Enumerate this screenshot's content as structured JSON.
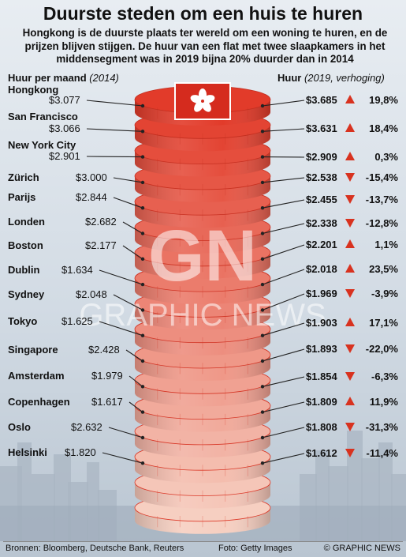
{
  "title": "Duurste steden om een huis te huren",
  "subtitle": "Hongkong is de duurste plaats ter wereld om een woning te huren, en de prijzen blijven stijgen. De huur van een flat met twee slaapkamers in het middensegment was in 2019 bijna 20% duurder dan in 2014",
  "left_header": {
    "label": "Huur per maand",
    "note": "(2014)"
  },
  "right_header": {
    "label": "Huur",
    "note": "(2019, verhoging)"
  },
  "watermark": {
    "logo": "GN",
    "text": "GRAPHIC NEWS"
  },
  "footer": {
    "sources": "Bronnen: Bloomberg, Deutsche Bank, Reuters",
    "photo": "Foto: Getty Images",
    "copyright": "© GRAPHIC NEWS"
  },
  "colors": {
    "coin_top": "#e23b2a",
    "coin_bottom": "#f6cfc1",
    "up_arrow": "#d8321f",
    "down_arrow": "#d8321f",
    "sky": "#c8d3de",
    "flag_red": "#d52b1e"
  },
  "icons": {
    "flag": "hong-kong-flag-icon",
    "up": "triangle-up-icon",
    "down": "triangle-down-icon"
  },
  "chart_data": {
    "type": "table",
    "series_2014_name": "Huur per maand (2014)",
    "series_2019_name": "Huur (2019, verhoging)",
    "rows": [
      {
        "city": "Hongkong",
        "rent_2014": "$3.077",
        "rent_2019": "$3.685",
        "change": "19,8%",
        "direction": "up"
      },
      {
        "city": "San Francisco",
        "rent_2014": "$3.066",
        "rent_2019": "$3.631",
        "change": "18,4%",
        "direction": "up"
      },
      {
        "city": "New York City",
        "rent_2014": "$2.901",
        "rent_2019": "$2.909",
        "change": "0,3%",
        "direction": "up"
      },
      {
        "city": "Zürich",
        "rent_2014": "$3.000",
        "rent_2019": "$2.538",
        "change": "-15,4%",
        "direction": "down"
      },
      {
        "city": "Parijs",
        "rent_2014": "$2.844",
        "rent_2019": "$2.455",
        "change": "-13,7%",
        "direction": "down"
      },
      {
        "city": "Londen",
        "rent_2014": "$2.682",
        "rent_2019": "$2.338",
        "change": "-12,8%",
        "direction": "down"
      },
      {
        "city": "Boston",
        "rent_2014": "$2.177",
        "rent_2019": "$2.201",
        "change": "1,1%",
        "direction": "up"
      },
      {
        "city": "Dublin",
        "rent_2014": "$1.634",
        "rent_2019": "$2.018",
        "change": "23,5%",
        "direction": "up"
      },
      {
        "city": "Sydney",
        "rent_2014": "$2.048",
        "rent_2019": "$1.969",
        "change": "-3,9%",
        "direction": "down"
      },
      {
        "city": "Tokyo",
        "rent_2014": "$1.625",
        "rent_2019": "$1.903",
        "change": "17,1%",
        "direction": "up"
      },
      {
        "city": "Singapore",
        "rent_2014": "$2.428",
        "rent_2019": "$1.893",
        "change": "-22,0%",
        "direction": "down"
      },
      {
        "city": "Amsterdam",
        "rent_2014": "$1.979",
        "rent_2019": "$1.854",
        "change": "-6,3%",
        "direction": "down"
      },
      {
        "city": "Copenhagen",
        "rent_2014": "$1.617",
        "rent_2019": "$1.809",
        "change": "11,9%",
        "direction": "up"
      },
      {
        "city": "Oslo",
        "rent_2014": "$2.632",
        "rent_2019": "$1.808",
        "change": "-31,3%",
        "direction": "down"
      },
      {
        "city": "Helsinki",
        "rent_2014": "$1.820",
        "rent_2019": "$1.612",
        "change": "-11,4%",
        "direction": "down"
      }
    ]
  }
}
